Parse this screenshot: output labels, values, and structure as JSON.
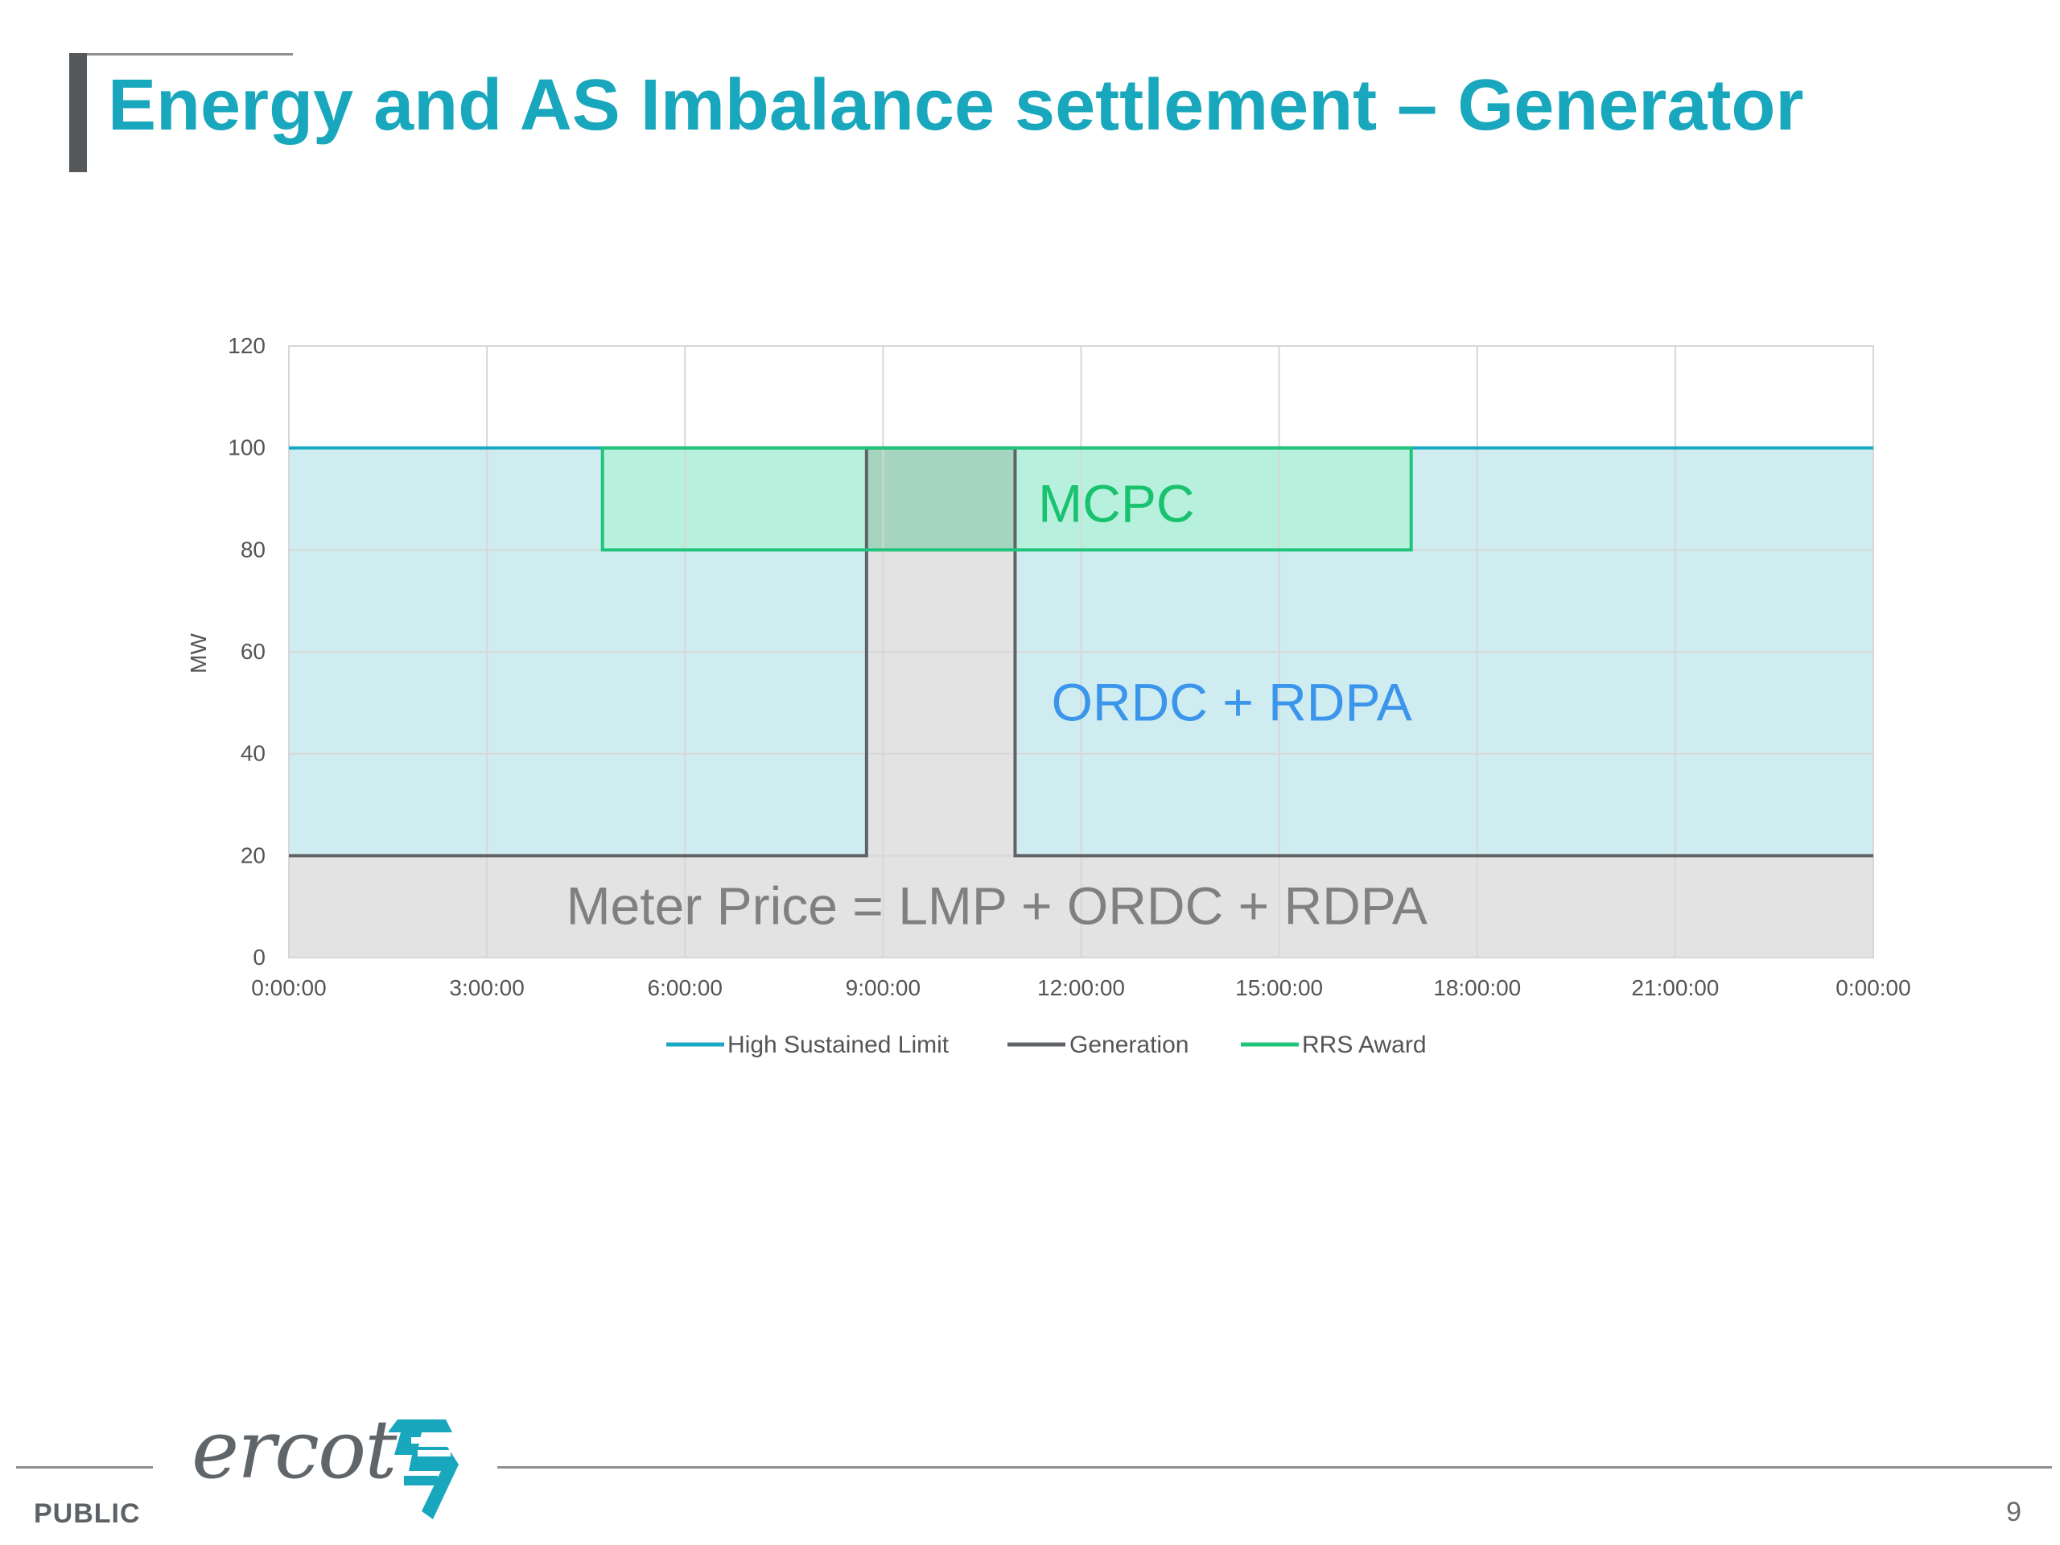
{
  "slide": {
    "title": "Energy and AS Imbalance settlement – Generator",
    "footer": {
      "public_label": "PUBLIC",
      "page_number": "9",
      "logo_text": "ercot",
      "logo_icon": "ercot-logo-icon"
    }
  },
  "chart_data": {
    "type": "line",
    "title": "",
    "xlabel": "",
    "ylabel": "MW",
    "x_ticks": [
      "0:00:00",
      "3:00:00",
      "6:00:00",
      "9:00:00",
      "12:00:00",
      "15:00:00",
      "18:00:00",
      "21:00:00",
      "0:00:00"
    ],
    "y_ticks": [
      0,
      20,
      40,
      60,
      80,
      100,
      120
    ],
    "xlim": [
      0,
      24
    ],
    "ylim": [
      0,
      120
    ],
    "grid": true,
    "legend_position": "bottom",
    "series": [
      {
        "name": "High Sustained Limit",
        "color": "#1aa7c4",
        "fill": "#cfecf1",
        "x": [
          0,
          24
        ],
        "y": [
          100,
          100
        ]
      },
      {
        "name": "Generation",
        "color": "#5f6368",
        "fill": "#e3e3e3",
        "x": [
          0,
          8.75,
          8.75,
          11,
          11,
          24
        ],
        "y": [
          20,
          20,
          100,
          100,
          20,
          20
        ]
      },
      {
        "name": "RRS Award",
        "color": "#20c47a",
        "fill": "#b7f0dc",
        "x": [
          4.75,
          4.75,
          17,
          17
        ],
        "y": [
          80,
          100,
          100,
          80
        ]
      }
    ],
    "annotations": [
      {
        "text": "MCPC",
        "x": 11.35,
        "y": 89,
        "color": "#18c26f"
      },
      {
        "text": "ORDC + RDPA",
        "x": 11.55,
        "y": 50,
        "color": "#3b95eb"
      },
      {
        "text": "Meter Price =  LMP + ORDC + RDPA",
        "x": 4.2,
        "y": 10,
        "color": "#808080"
      }
    ]
  }
}
